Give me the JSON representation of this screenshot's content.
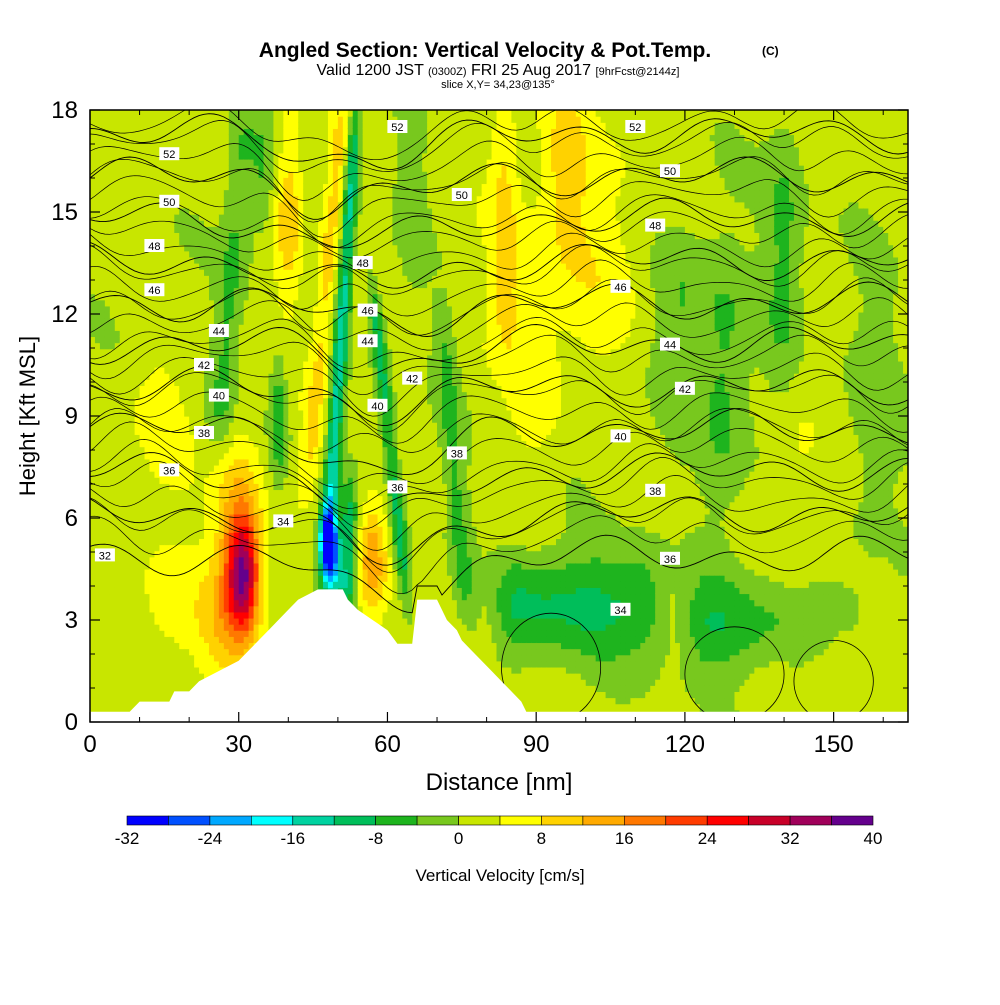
{
  "chart_data": {
    "type": "heatmap",
    "title": "Angled Section: Vertical Velocity & Pot.Temp.",
    "title_unit": "(C)",
    "subtitle_parts": {
      "valid": "Valid 1200 JST",
      "utc": "(0300Z)",
      "date": "FRI 25 Aug 2017",
      "forecast": "[9hrFcst@2144z]"
    },
    "slice_label": "slice X,Y= 34,23@135°",
    "xlabel": "Distance [nm]",
    "ylabel": "Height [Kft MSL]",
    "xlim": [
      0,
      165
    ],
    "ylim": [
      0,
      18
    ],
    "x_ticks": [
      0,
      30,
      60,
      90,
      120,
      150
    ],
    "y_ticks": [
      0,
      3,
      6,
      9,
      12,
      15,
      18
    ],
    "colorbar": {
      "label": "Vertical Velocity [cm/s]",
      "ticks": [
        -32,
        -24,
        -16,
        -8,
        0,
        8,
        16,
        24,
        32,
        40
      ],
      "bins": [
        -32,
        -28,
        -24,
        -20,
        -16,
        -12,
        -8,
        -4,
        0,
        4,
        8,
        12,
        16,
        20,
        24,
        28,
        32,
        36,
        40
      ],
      "colors": [
        "#0000ff",
        "#0050ff",
        "#00a8ff",
        "#00ffff",
        "#00d2a0",
        "#00be5a",
        "#1eb41e",
        "#78c81e",
        "#c8e600",
        "#ffff00",
        "#ffd200",
        "#ffaa00",
        "#ff7800",
        "#ff3c00",
        "#ff0000",
        "#c80028",
        "#a0005a",
        "#64008c"
      ]
    },
    "contour_levels": [
      32,
      34,
      36,
      38,
      40,
      42,
      44,
      46,
      48,
      50,
      52
    ],
    "contour_labels": [
      {
        "v": "52",
        "x": 16,
        "y": 16.7
      },
      {
        "v": "50",
        "x": 16,
        "y": 15.3
      },
      {
        "v": "48",
        "x": 13,
        "y": 14.0
      },
      {
        "v": "46",
        "x": 13,
        "y": 12.7
      },
      {
        "v": "44",
        "x": 26,
        "y": 11.5
      },
      {
        "v": "42",
        "x": 23,
        "y": 10.5
      },
      {
        "v": "40",
        "x": 26,
        "y": 9.6
      },
      {
        "v": "38",
        "x": 23,
        "y": 8.5
      },
      {
        "v": "36",
        "x": 16,
        "y": 7.4
      },
      {
        "v": "34",
        "x": 39,
        "y": 5.9
      },
      {
        "v": "32",
        "x": 3,
        "y": 4.9
      },
      {
        "v": "52",
        "x": 62,
        "y": 17.5
      },
      {
        "v": "50",
        "x": 75,
        "y": 15.5
      },
      {
        "v": "48",
        "x": 55,
        "y": 13.5
      },
      {
        "v": "46",
        "x": 56,
        "y": 12.1
      },
      {
        "v": "44",
        "x": 56,
        "y": 11.2
      },
      {
        "v": "42",
        "x": 65,
        "y": 10.1
      },
      {
        "v": "40",
        "x": 58,
        "y": 9.3
      },
      {
        "v": "38",
        "x": 74,
        "y": 7.9
      },
      {
        "v": "36",
        "x": 62,
        "y": 6.9
      },
      {
        "v": "52",
        "x": 110,
        "y": 17.5
      },
      {
        "v": "50",
        "x": 117,
        "y": 16.2
      },
      {
        "v": "48",
        "x": 114,
        "y": 14.6
      },
      {
        "v": "46",
        "x": 107,
        "y": 12.8
      },
      {
        "v": "44",
        "x": 117,
        "y": 11.1
      },
      {
        "v": "42",
        "x": 120,
        "y": 9.8
      },
      {
        "v": "40",
        "x": 107,
        "y": 8.4
      },
      {
        "v": "38",
        "x": 114,
        "y": 6.8
      },
      {
        "v": "36",
        "x": 117,
        "y": 4.8
      },
      {
        "v": "34",
        "x": 107,
        "y": 3.3
      }
    ],
    "terrain_profile": [
      [
        0,
        0.3
      ],
      [
        8,
        0.3
      ],
      [
        10,
        0.6
      ],
      [
        16,
        0.6
      ],
      [
        17,
        0.9
      ],
      [
        20,
        0.9
      ],
      [
        22,
        1.2
      ],
      [
        26,
        1.5
      ],
      [
        30,
        1.8
      ],
      [
        32,
        2.1
      ],
      [
        34,
        2.4
      ],
      [
        36,
        2.7
      ],
      [
        38,
        3.0
      ],
      [
        40,
        3.3
      ],
      [
        42,
        3.6
      ],
      [
        46,
        3.9
      ],
      [
        51,
        3.9
      ],
      [
        52,
        3.6
      ],
      [
        54,
        3.3
      ],
      [
        57,
        3.0
      ],
      [
        60,
        2.7
      ],
      [
        62,
        2.3
      ],
      [
        65,
        2.3
      ],
      [
        66,
        3.6
      ],
      [
        70,
        3.6
      ],
      [
        72,
        3.0
      ],
      [
        74,
        2.7
      ],
      [
        75,
        2.4
      ],
      [
        77,
        2.1
      ],
      [
        79,
        1.8
      ],
      [
        81,
        1.5
      ],
      [
        83,
        1.2
      ],
      [
        85,
        0.9
      ],
      [
        87,
        0.6
      ],
      [
        88,
        0.3
      ],
      [
        165,
        0.3
      ]
    ]
  }
}
